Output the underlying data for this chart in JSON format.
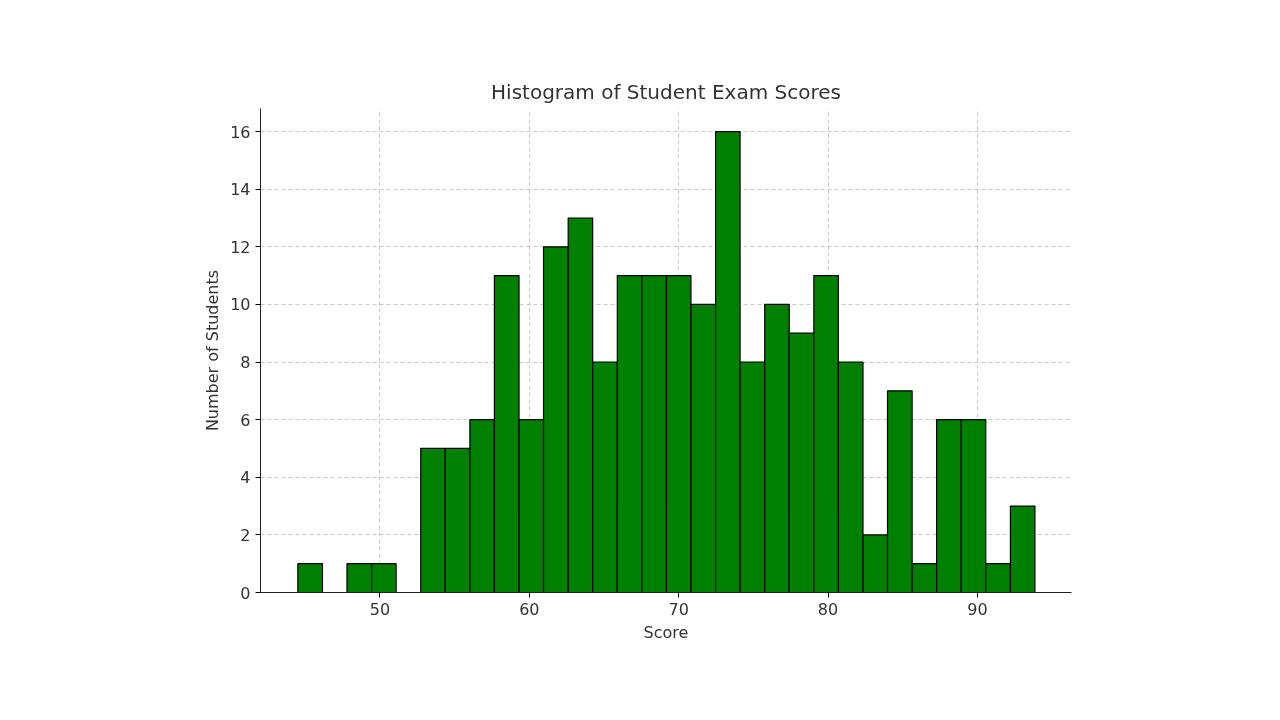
{
  "chart_data": {
    "type": "histogram",
    "title": "Histogram of Student Exam Scores",
    "xlabel": "Score",
    "ylabel": "Number of Students",
    "bins": [
      44.5,
      46.15,
      47.79,
      49.44,
      51.08,
      52.73,
      54.37,
      56.02,
      57.66,
      59.31,
      60.95,
      62.6,
      64.24,
      65.89,
      67.53,
      69.18,
      70.82,
      72.47,
      74.11,
      75.76,
      77.4,
      79.05,
      80.69,
      82.34,
      83.98,
      85.63,
      87.27,
      88.92,
      90.56,
      92.21,
      93.85
    ],
    "values": [
      1,
      0,
      1,
      1,
      0,
      5,
      5,
      6,
      11,
      6,
      12,
      13,
      8,
      11,
      11,
      11,
      10,
      16,
      8,
      10,
      9,
      11,
      8,
      2,
      7,
      1,
      6,
      6,
      1,
      3
    ],
    "color": "#008000",
    "xlim": [
      42.0,
      96.3
    ],
    "ylim": [
      0,
      16.8
    ],
    "xticks": [
      50,
      60,
      70,
      80,
      90
    ],
    "yticks": [
      0,
      2,
      4,
      6,
      8,
      10,
      12,
      14,
      16
    ],
    "grid": true
  }
}
